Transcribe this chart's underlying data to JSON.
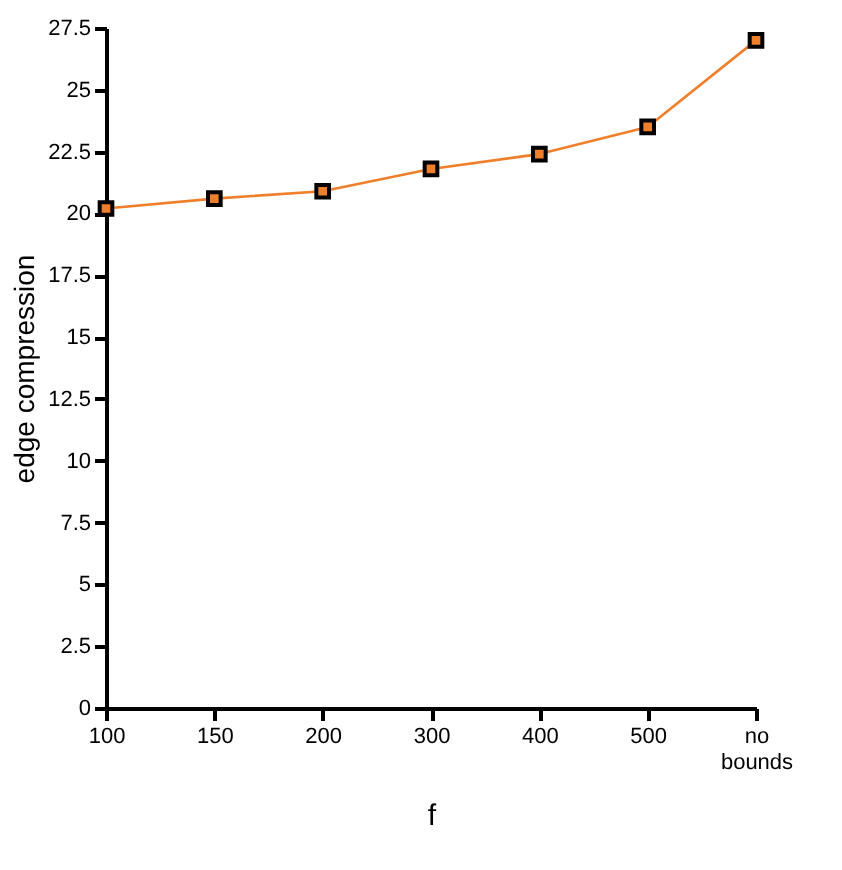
{
  "chart_data": {
    "type": "line",
    "xlabel": "f",
    "ylabel": "edge compression",
    "categories": [
      "100",
      "150",
      "200",
      "300",
      "400",
      "500",
      "no bounds"
    ],
    "series": [
      {
        "color": "#f07f2c",
        "values": [
          20.2,
          20.6,
          20.9,
          21.8,
          22.4,
          23.5,
          27.0
        ]
      }
    ],
    "ylim": [
      0,
      27.5
    ],
    "yticks": [
      0,
      2.5,
      5,
      7.5,
      10,
      12.5,
      15,
      17.5,
      20,
      22.5,
      25,
      27.5
    ],
    "marker": "square",
    "grid": false,
    "legend": false
  }
}
